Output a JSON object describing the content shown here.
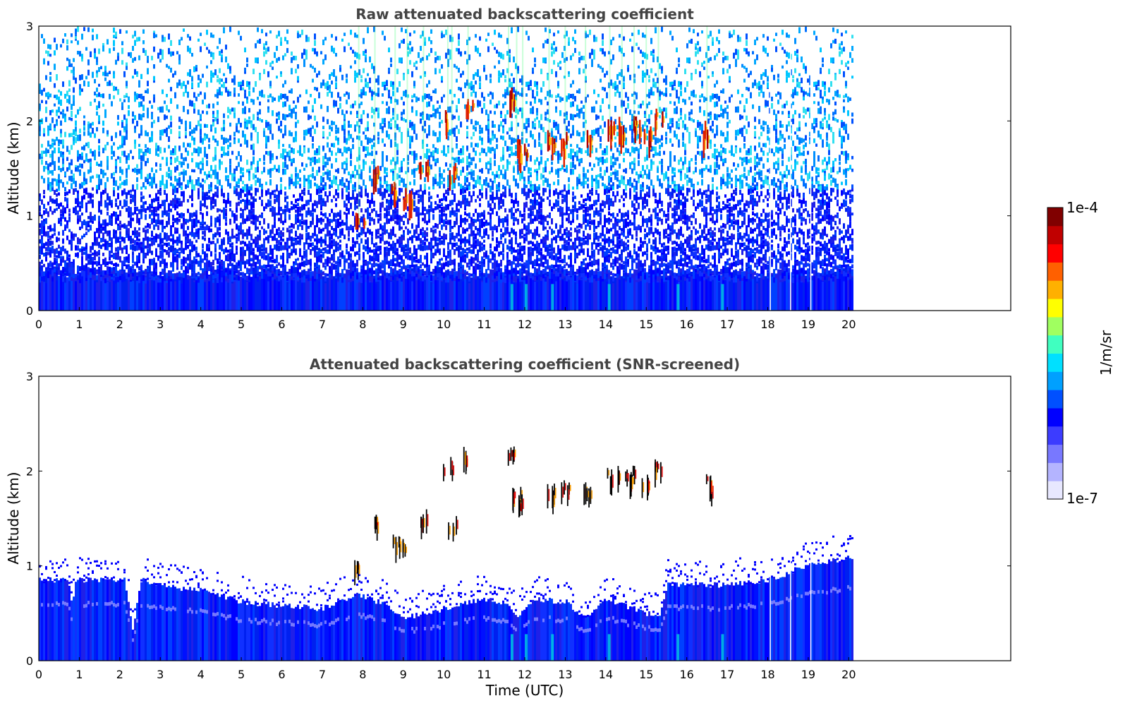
{
  "chart_data": [
    {
      "type": "heatmap",
      "title": "Raw attenuated backscattering coefficient",
      "xlabel": "",
      "ylabel": "Altitude (km)",
      "xlim": [
        0,
        24
      ],
      "ylim": [
        0,
        3
      ],
      "x_ticks": [
        "0",
        "1",
        "2",
        "3",
        "4",
        "5",
        "6",
        "7",
        "8",
        "9",
        "10",
        "11",
        "12",
        "13",
        "14",
        "15",
        "16",
        "17",
        "18",
        "19",
        "20"
      ],
      "y_ticks": [
        "0",
        "1",
        "2",
        "3"
      ],
      "data_extent_hours": [
        0,
        20.1
      ],
      "colorscale": "jet",
      "value_range": [
        "1e-7",
        "1e-4"
      ],
      "clouds": [
        {
          "t": 7.9,
          "alt": 1.0
        },
        {
          "t": 8.3,
          "alt": 1.5
        },
        {
          "t": 8.8,
          "alt": 1.3
        },
        {
          "t": 9.1,
          "alt": 1.25
        },
        {
          "t": 9.5,
          "alt": 1.55
        },
        {
          "t": 10.1,
          "alt": 2.1
        },
        {
          "t": 10.2,
          "alt": 1.5
        },
        {
          "t": 10.6,
          "alt": 2.2
        },
        {
          "t": 11.6,
          "alt": 2.3
        },
        {
          "t": 11.8,
          "alt": 1.8
        },
        {
          "t": 11.95,
          "alt": 1.75
        },
        {
          "t": 12.6,
          "alt": 1.85
        },
        {
          "t": 13.0,
          "alt": 1.85
        },
        {
          "t": 13.5,
          "alt": 1.85
        },
        {
          "t": 14.1,
          "alt": 2.0
        },
        {
          "t": 14.4,
          "alt": 2.0
        },
        {
          "t": 14.7,
          "alt": 2.0
        },
        {
          "t": 15.0,
          "alt": 1.95
        },
        {
          "t": 15.3,
          "alt": 2.1
        },
        {
          "t": 16.5,
          "alt": 1.95
        }
      ]
    },
    {
      "type": "heatmap",
      "title": "Attenuated backscattering coefficient (SNR-screened)",
      "xlabel": "Time (UTC)",
      "ylabel": "Altitude (km)",
      "xlim": [
        0,
        24
      ],
      "ylim": [
        0,
        3
      ],
      "x_ticks": [
        "0",
        "1",
        "2",
        "3",
        "4",
        "5",
        "6",
        "7",
        "8",
        "9",
        "10",
        "11",
        "12",
        "13",
        "14",
        "15",
        "16",
        "17",
        "18",
        "19",
        "20"
      ],
      "y_ticks": [
        "0",
        "1",
        "2",
        "3"
      ],
      "data_extent_hours": [
        0,
        20.1
      ],
      "colorscale": "jet",
      "value_range": [
        "1e-7",
        "1e-4"
      ],
      "boundary_layer_top_km": [
        [
          0,
          0.85
        ],
        [
          0.7,
          0.85
        ],
        [
          0.8,
          0.6
        ],
        [
          0.9,
          0.85
        ],
        [
          2.1,
          0.85
        ],
        [
          2.3,
          0.32
        ],
        [
          2.5,
          0.85
        ],
        [
          3.5,
          0.75
        ],
        [
          4.0,
          0.75
        ],
        [
          5.0,
          0.62
        ],
        [
          6.0,
          0.58
        ],
        [
          7.0,
          0.55
        ],
        [
          7.8,
          0.7
        ],
        [
          8.5,
          0.6
        ],
        [
          9.0,
          0.45
        ],
        [
          10.0,
          0.55
        ],
        [
          11.0,
          0.65
        ],
        [
          11.5,
          0.6
        ],
        [
          11.8,
          0.48
        ],
        [
          12.2,
          0.65
        ],
        [
          13.0,
          0.62
        ],
        [
          13.5,
          0.45
        ],
        [
          14.0,
          0.65
        ],
        [
          15.0,
          0.5
        ],
        [
          15.3,
          0.45
        ],
        [
          15.5,
          0.8
        ],
        [
          17.0,
          0.8
        ],
        [
          18.0,
          0.85
        ],
        [
          19.0,
          1.0
        ],
        [
          20.1,
          1.1
        ]
      ],
      "clouds": [
        {
          "t": 7.9,
          "alt": 1.05
        },
        {
          "t": 8.3,
          "alt": 1.5
        },
        {
          "t": 8.8,
          "alt": 1.3
        },
        {
          "t": 9.1,
          "alt": 1.25
        },
        {
          "t": 9.5,
          "alt": 1.55
        },
        {
          "t": 10.1,
          "alt": 2.1
        },
        {
          "t": 10.2,
          "alt": 1.5
        },
        {
          "t": 10.6,
          "alt": 2.2
        },
        {
          "t": 11.6,
          "alt": 2.25
        },
        {
          "t": 11.8,
          "alt": 1.8
        },
        {
          "t": 11.95,
          "alt": 1.75
        },
        {
          "t": 12.6,
          "alt": 1.85
        },
        {
          "t": 13.0,
          "alt": 1.85
        },
        {
          "t": 13.5,
          "alt": 1.85
        },
        {
          "t": 14.1,
          "alt": 2.0
        },
        {
          "t": 14.4,
          "alt": 2.0
        },
        {
          "t": 14.7,
          "alt": 2.0
        },
        {
          "t": 15.0,
          "alt": 1.95
        },
        {
          "t": 15.3,
          "alt": 2.1
        },
        {
          "t": 16.5,
          "alt": 1.95
        }
      ]
    }
  ],
  "colorbar": {
    "label": "1/m/sr",
    "max_label": "1e-4",
    "min_label": "1e-7",
    "colors": [
      "#e8e8ff",
      "#b4b4ff",
      "#7878ff",
      "#3c3cff",
      "#0000ff",
      "#0050ff",
      "#00a0ff",
      "#00e0ff",
      "#40ffc0",
      "#a0ff60",
      "#ffff00",
      "#ffb000",
      "#ff6000",
      "#ff0000",
      "#c00000",
      "#800000"
    ]
  }
}
